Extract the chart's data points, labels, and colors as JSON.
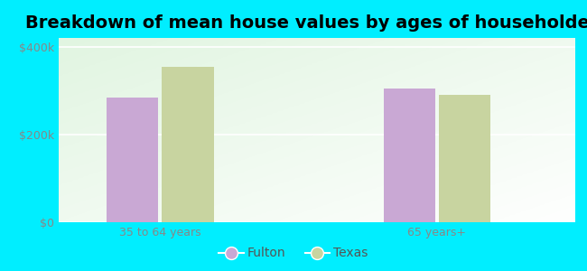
{
  "title": "Breakdown of mean house values by ages of householders",
  "categories": [
    "35 to 64 years",
    "65 years+"
  ],
  "fulton_values": [
    285000,
    305000
  ],
  "texas_values": [
    355000,
    290000
  ],
  "fulton_color": "#c9a8d4",
  "texas_color": "#c8d4a0",
  "background_color": "#00eeff",
  "ylim": [
    0,
    420000
  ],
  "yticks": [
    0,
    200000,
    400000
  ],
  "ytick_labels": [
    "$0",
    "$200k",
    "$400k"
  ],
  "bar_width": 0.28,
  "legend_labels": [
    "Fulton",
    "Texas"
  ],
  "title_fontsize": 14,
  "tick_fontsize": 9,
  "legend_fontsize": 10,
  "tick_color": "#888888",
  "label_color": "#555555"
}
